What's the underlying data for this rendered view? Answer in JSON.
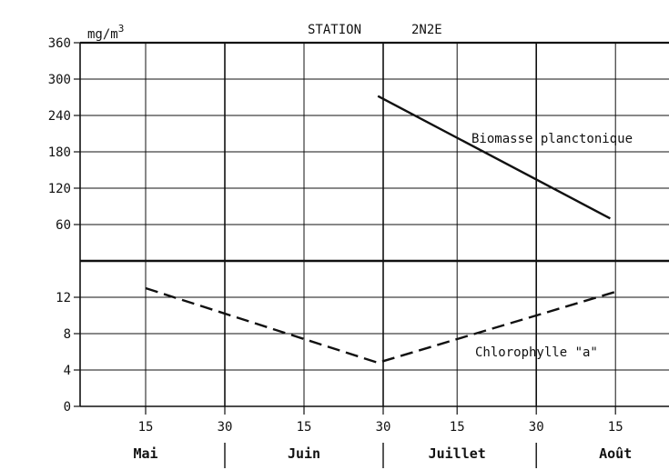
{
  "chart_data": {
    "type": "line",
    "title": "STATION",
    "station": "2N2E",
    "unit": "mg/m3",
    "unit_base": "mg/m",
    "unit_exp": "3",
    "x_ticks": [
      "15",
      "30",
      "15",
      "30",
      "15",
      "30",
      "15"
    ],
    "months": [
      "Mai",
      "Juin",
      "Juillet",
      "Août"
    ],
    "xlim": [
      0,
      117
    ],
    "grid": true,
    "panels": [
      {
        "name": "biomasse",
        "ylim": [
          0,
          360
        ],
        "yticks": [
          "60",
          "120",
          "180",
          "240",
          "300",
          "360"
        ],
        "ytick_values": [
          60,
          120,
          180,
          240,
          300,
          360
        ],
        "series": [
          {
            "name": "Biomasse planctonique",
            "style": "solid",
            "color": "#111111",
            "x": [
              59,
              103
            ],
            "y": [
              272,
              70
            ]
          }
        ]
      },
      {
        "name": "chlorophylle",
        "ylim": [
          0,
          16
        ],
        "yticks": [
          "0",
          "4",
          "8",
          "12"
        ],
        "ytick_values": [
          0,
          4,
          8,
          12
        ],
        "series": [
          {
            "name": "Chlorophylle \"a\"",
            "style": "dashed",
            "color": "#111111",
            "x": [
              15,
              59,
              104
            ],
            "y": [
              13,
              4.8,
              12.6
            ]
          }
        ]
      }
    ]
  }
}
